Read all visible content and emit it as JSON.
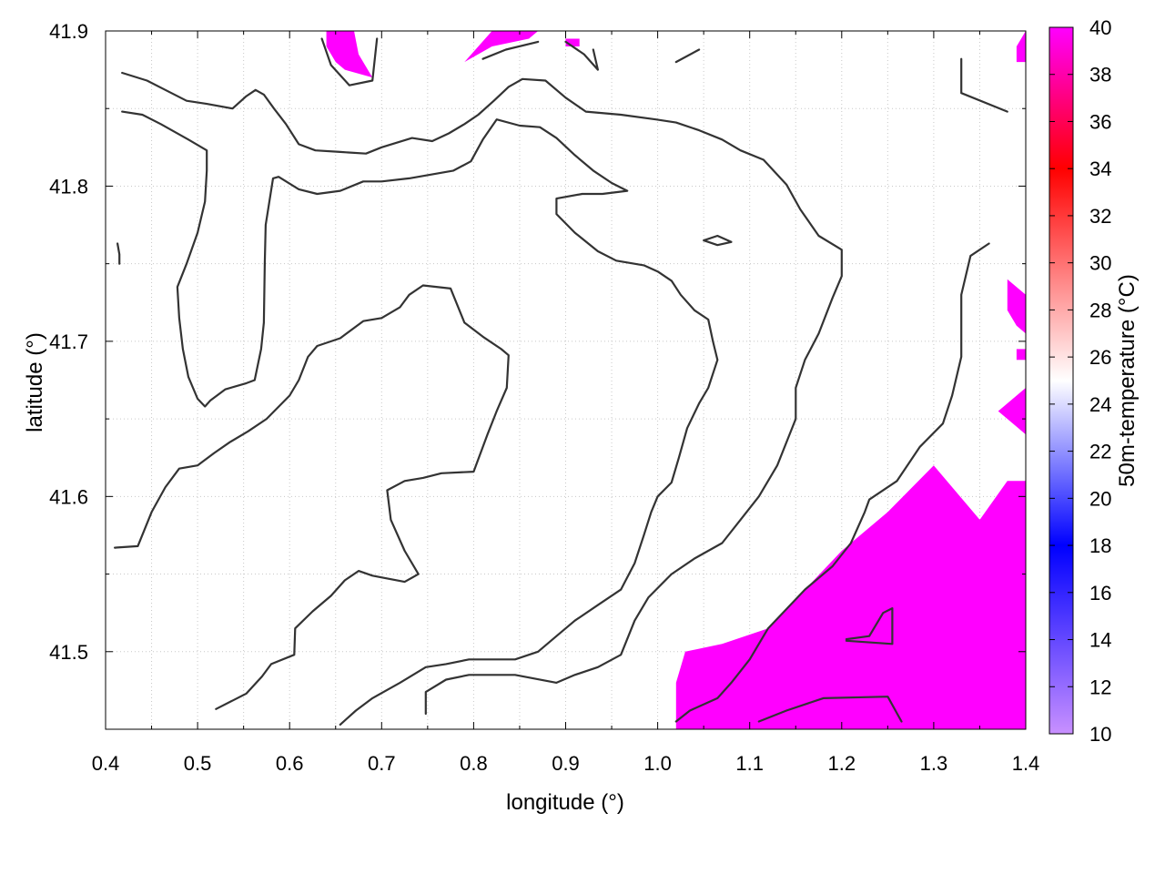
{
  "chart_data": {
    "type": "heatmap",
    "title": "",
    "xlabel": "longitude (°)",
    "ylabel": "latitude (°)",
    "colorbar_label": "50m-temperature (°C)",
    "xlim": [
      0.4,
      1.4
    ],
    "ylim": [
      41.45,
      41.9
    ],
    "x_ticks": [
      "0.4",
      "0.5",
      "0.6",
      "0.7",
      "0.8",
      "0.9",
      "1.0",
      "1.1",
      "1.2",
      "1.3",
      "1.4"
    ],
    "y_ticks": [
      "41.5",
      "41.6",
      "41.7",
      "41.8",
      "41.9"
    ],
    "colorbar_ticks": [
      "10",
      "12",
      "14",
      "16",
      "18",
      "20",
      "22",
      "24",
      "26",
      "28",
      "30",
      "32",
      "34",
      "36",
      "38",
      "40"
    ],
    "colorbar_range": [
      10,
      40
    ],
    "colorscale": [
      {
        "value": 10,
        "color": "#c890ff"
      },
      {
        "value": 18,
        "color": "#0000ff"
      },
      {
        "value": 25,
        "color": "#ffffff"
      },
      {
        "value": 34,
        "color": "#ff0000"
      },
      {
        "value": 40,
        "color": "#ff00ff"
      }
    ],
    "grid": true,
    "fill_color": "#ff00ff",
    "fill_value": 40,
    "fill_regions": [
      {
        "name": "south-east",
        "points": [
          [
            1.02,
            41.45
          ],
          [
            1.4,
            41.45
          ],
          [
            1.4,
            41.61
          ],
          [
            1.38,
            41.61
          ],
          [
            1.35,
            41.585
          ],
          [
            1.3,
            41.62
          ],
          [
            1.25,
            41.59
          ],
          [
            1.2,
            41.565
          ],
          [
            1.16,
            41.54
          ],
          [
            1.12,
            41.515
          ],
          [
            1.07,
            41.505
          ],
          [
            1.03,
            41.5
          ],
          [
            1.02,
            41.48
          ]
        ]
      },
      {
        "name": "north-a",
        "points": [
          [
            0.64,
            41.9
          ],
          [
            0.67,
            41.9
          ],
          [
            0.675,
            41.885
          ],
          [
            0.69,
            41.87
          ],
          [
            0.66,
            41.875
          ],
          [
            0.65,
            41.88
          ],
          [
            0.64,
            41.89
          ]
        ]
      },
      {
        "name": "north-b",
        "points": [
          [
            0.79,
            41.88
          ],
          [
            0.82,
            41.9
          ],
          [
            0.87,
            41.9
          ],
          [
            0.86,
            41.895
          ],
          [
            0.82,
            41.89
          ]
        ]
      },
      {
        "name": "north-c",
        "points": [
          [
            0.9,
            41.895
          ],
          [
            0.915,
            41.895
          ],
          [
            0.915,
            41.89
          ],
          [
            0.9,
            41.89
          ]
        ]
      },
      {
        "name": "north-d",
        "points": [
          [
            1.39,
            41.89
          ],
          [
            1.4,
            41.9
          ],
          [
            1.4,
            41.88
          ],
          [
            1.39,
            41.88
          ]
        ]
      },
      {
        "name": "east-a",
        "points": [
          [
            1.38,
            41.74
          ],
          [
            1.4,
            41.73
          ],
          [
            1.4,
            41.705
          ],
          [
            1.39,
            41.71
          ],
          [
            1.38,
            41.72
          ]
        ]
      },
      {
        "name": "east-b",
        "points": [
          [
            1.37,
            41.655
          ],
          [
            1.4,
            41.67
          ],
          [
            1.4,
            41.64
          ],
          [
            1.39,
            41.645
          ]
        ]
      },
      {
        "name": "east-c",
        "points": [
          [
            1.39,
            41.695
          ],
          [
            1.4,
            41.695
          ],
          [
            1.4,
            41.688
          ],
          [
            1.39,
            41.688
          ]
        ]
      }
    ],
    "contours": [
      [
        [
          0.418,
          41.873
        ],
        [
          0.445,
          41.868
        ],
        [
          0.465,
          41.862
        ],
        [
          0.488,
          41.855
        ],
        [
          0.51,
          41.853
        ],
        [
          0.538,
          41.85
        ],
        [
          0.553,
          41.858
        ],
        [
          0.563,
          41.862
        ],
        [
          0.572,
          41.859
        ],
        [
          0.583,
          41.85
        ],
        [
          0.596,
          41.84
        ],
        [
          0.61,
          41.827
        ],
        [
          0.628,
          41.823
        ],
        [
          0.655,
          41.822
        ],
        [
          0.683,
          41.821
        ],
        [
          0.7,
          41.825
        ],
        [
          0.733,
          41.831
        ],
        [
          0.755,
          41.829
        ],
        [
          0.773,
          41.834
        ],
        [
          0.79,
          41.84
        ],
        [
          0.805,
          41.846
        ],
        [
          0.822,
          41.855
        ],
        [
          0.838,
          41.864
        ],
        [
          0.853,
          41.869
        ],
        [
          0.878,
          41.868
        ],
        [
          0.9,
          41.857
        ],
        [
          0.922,
          41.848
        ],
        [
          0.96,
          41.846
        ],
        [
          0.998,
          41.843
        ],
        [
          1.02,
          41.841
        ],
        [
          1.045,
          41.836
        ],
        [
          1.07,
          41.83
        ],
        [
          1.09,
          41.823
        ],
        [
          1.115,
          41.817
        ],
        [
          1.14,
          41.801
        ],
        [
          1.155,
          41.785
        ],
        [
          1.175,
          41.768
        ],
        [
          1.2,
          41.759
        ],
        [
          1.2,
          41.742
        ],
        [
          1.19,
          41.728
        ],
        [
          1.175,
          41.705
        ],
        [
          1.16,
          41.688
        ],
        [
          1.15,
          41.67
        ],
        [
          1.15,
          41.65
        ],
        [
          1.13,
          41.62
        ],
        [
          1.11,
          41.6
        ],
        [
          1.09,
          41.585
        ],
        [
          1.07,
          41.57
        ],
        [
          1.04,
          41.56
        ],
        [
          1.015,
          41.55
        ],
        [
          0.99,
          41.535
        ],
        [
          0.975,
          41.52
        ],
        [
          0.96,
          41.498
        ],
        [
          0.935,
          41.49
        ],
        [
          0.91,
          41.485
        ],
        [
          0.89,
          41.48
        ],
        [
          0.845,
          41.485
        ],
        [
          0.795,
          41.485
        ],
        [
          0.77,
          41.482
        ],
        [
          0.748,
          41.474
        ],
        [
          0.748,
          41.46
        ]
      ],
      [
        [
          0.418,
          41.848
        ],
        [
          0.44,
          41.846
        ],
        [
          0.46,
          41.84
        ],
        [
          0.49,
          41.83
        ],
        [
          0.51,
          41.823
        ],
        [
          0.51,
          41.81
        ],
        [
          0.508,
          41.79
        ],
        [
          0.5,
          41.77
        ],
        [
          0.488,
          41.75
        ],
        [
          0.478,
          41.735
        ],
        [
          0.48,
          41.715
        ],
        [
          0.484,
          41.695
        ],
        [
          0.49,
          41.677
        ],
        [
          0.5,
          41.663
        ],
        [
          0.508,
          41.658
        ],
        [
          0.514,
          41.662
        ],
        [
          0.53,
          41.669
        ],
        [
          0.553,
          41.673
        ],
        [
          0.562,
          41.675
        ],
        [
          0.569,
          41.695
        ],
        [
          0.572,
          41.712
        ],
        [
          0.573,
          41.75
        ],
        [
          0.574,
          41.775
        ],
        [
          0.582,
          41.805
        ],
        [
          0.588,
          41.806
        ],
        [
          0.61,
          41.798
        ],
        [
          0.63,
          41.795
        ],
        [
          0.655,
          41.797
        ],
        [
          0.68,
          41.803
        ],
        [
          0.7,
          41.803
        ],
        [
          0.73,
          41.805
        ],
        [
          0.778,
          41.81
        ],
        [
          0.797,
          41.816
        ],
        [
          0.81,
          41.83
        ],
        [
          0.825,
          41.843
        ],
        [
          0.85,
          41.839
        ],
        [
          0.872,
          41.838
        ],
        [
          0.89,
          41.831
        ],
        [
          0.91,
          41.82
        ],
        [
          0.93,
          41.81
        ],
        [
          0.95,
          41.802
        ],
        [
          0.967,
          41.797
        ],
        [
          0.94,
          41.795
        ],
        [
          0.918,
          41.795
        ],
        [
          0.89,
          41.792
        ],
        [
          0.89,
          41.782
        ],
        [
          0.91,
          41.77
        ],
        [
          0.935,
          41.758
        ],
        [
          0.955,
          41.752
        ],
        [
          0.985,
          41.749
        ],
        [
          1.0,
          41.745
        ],
        [
          1.015,
          41.739
        ],
        [
          1.025,
          41.73
        ],
        [
          1.04,
          41.72
        ],
        [
          1.055,
          41.714
        ],
        [
          1.06,
          41.7
        ],
        [
          1.065,
          41.688
        ],
        [
          1.055,
          41.67
        ],
        [
          1.045,
          41.66
        ],
        [
          1.032,
          41.644
        ],
        [
          1.023,
          41.625
        ],
        [
          1.015,
          41.609
        ],
        [
          1.0,
          41.6
        ],
        [
          0.993,
          41.59
        ],
        [
          0.985,
          41.575
        ],
        [
          0.975,
          41.557
        ],
        [
          0.96,
          41.54
        ],
        [
          0.935,
          41.53
        ],
        [
          0.91,
          41.52
        ],
        [
          0.89,
          41.51
        ],
        [
          0.87,
          41.5
        ],
        [
          0.845,
          41.495
        ],
        [
          0.795,
          41.495
        ],
        [
          0.77,
          41.492
        ],
        [
          0.748,
          41.49
        ],
        [
          0.72,
          41.48
        ],
        [
          0.69,
          41.47
        ],
        [
          0.672,
          41.462
        ],
        [
          0.655,
          41.453
        ]
      ],
      [
        [
          0.41,
          41.567
        ],
        [
          0.435,
          41.568
        ],
        [
          0.45,
          41.59
        ],
        [
          0.465,
          41.606
        ],
        [
          0.48,
          41.618
        ],
        [
          0.5,
          41.62
        ],
        [
          0.518,
          41.628
        ],
        [
          0.535,
          41.635
        ],
        [
          0.555,
          41.642
        ],
        [
          0.575,
          41.65
        ],
        [
          0.6,
          41.665
        ],
        [
          0.61,
          41.675
        ],
        [
          0.62,
          41.69
        ],
        [
          0.63,
          41.697
        ],
        [
          0.655,
          41.702
        ],
        [
          0.68,
          41.713
        ],
        [
          0.7,
          41.715
        ],
        [
          0.72,
          41.722
        ],
        [
          0.73,
          41.73
        ],
        [
          0.745,
          41.736
        ],
        [
          0.775,
          41.734
        ],
        [
          0.79,
          41.712
        ],
        [
          0.81,
          41.703
        ],
        [
          0.83,
          41.695
        ],
        [
          0.838,
          41.691
        ],
        [
          0.836,
          41.67
        ],
        [
          0.825,
          41.655
        ],
        [
          0.815,
          41.64
        ],
        [
          0.8,
          41.616
        ],
        [
          0.765,
          41.615
        ],
        [
          0.745,
          41.612
        ],
        [
          0.725,
          41.61
        ],
        [
          0.706,
          41.604
        ],
        [
          0.71,
          41.585
        ],
        [
          0.725,
          41.565
        ],
        [
          0.74,
          41.55
        ],
        [
          0.725,
          41.545
        ],
        [
          0.69,
          41.549
        ],
        [
          0.675,
          41.552
        ],
        [
          0.66,
          41.546
        ],
        [
          0.645,
          41.536
        ],
        [
          0.625,
          41.526
        ],
        [
          0.606,
          41.515
        ],
        [
          0.605,
          41.498
        ],
        [
          0.58,
          41.492
        ],
        [
          0.57,
          41.484
        ],
        [
          0.553,
          41.473
        ],
        [
          0.52,
          41.463
        ]
      ],
      [
        [
          1.36,
          41.763
        ],
        [
          1.34,
          41.755
        ],
        [
          1.33,
          41.73
        ],
        [
          1.33,
          41.69
        ],
        [
          1.32,
          41.665
        ],
        [
          1.31,
          41.647
        ],
        [
          1.285,
          41.632
        ],
        [
          1.26,
          41.61
        ],
        [
          1.23,
          41.598
        ],
        [
          1.225,
          41.59
        ],
        [
          1.21,
          41.57
        ],
        [
          1.19,
          41.555
        ],
        [
          1.16,
          41.54
        ],
        [
          1.12,
          41.515
        ],
        [
          1.1,
          41.495
        ],
        [
          1.08,
          41.48
        ],
        [
          1.065,
          41.47
        ],
        [
          1.035,
          41.462
        ],
        [
          1.02,
          41.455
        ]
      ],
      [
        [
          0.635,
          41.895
        ],
        [
          0.645,
          41.878
        ],
        [
          0.665,
          41.865
        ],
        [
          0.69,
          41.868
        ],
        [
          0.695,
          41.895
        ]
      ],
      [
        [
          0.81,
          41.882
        ],
        [
          0.835,
          41.888
        ],
        [
          0.87,
          41.893
        ]
      ],
      [
        [
          0.9,
          41.893
        ],
        [
          0.92,
          41.885
        ],
        [
          0.935,
          41.875
        ],
        [
          0.93,
          41.888
        ]
      ],
      [
        [
          1.02,
          41.88
        ],
        [
          1.045,
          41.888
        ]
      ],
      [
        [
          1.33,
          41.882
        ],
        [
          1.33,
          41.86
        ],
        [
          1.38,
          41.848
        ]
      ],
      [
        [
          1.11,
          41.455
        ],
        [
          1.14,
          41.462
        ],
        [
          1.18,
          41.47
        ],
        [
          1.25,
          41.471
        ],
        [
          1.265,
          41.455
        ]
      ],
      [
        [
          1.205,
          41.508
        ],
        [
          1.23,
          41.51
        ],
        [
          1.245,
          41.525
        ],
        [
          1.255,
          41.528
        ],
        [
          1.255,
          41.505
        ],
        [
          1.205,
          41.507
        ]
      ],
      [
        [
          1.05,
          41.765
        ],
        [
          1.065,
          41.768
        ],
        [
          1.08,
          41.764
        ],
        [
          1.065,
          41.762
        ],
        [
          1.05,
          41.765
        ]
      ],
      [
        [
          0.413,
          41.763
        ],
        [
          0.415,
          41.756
        ],
        [
          0.415,
          41.75
        ]
      ]
    ]
  }
}
